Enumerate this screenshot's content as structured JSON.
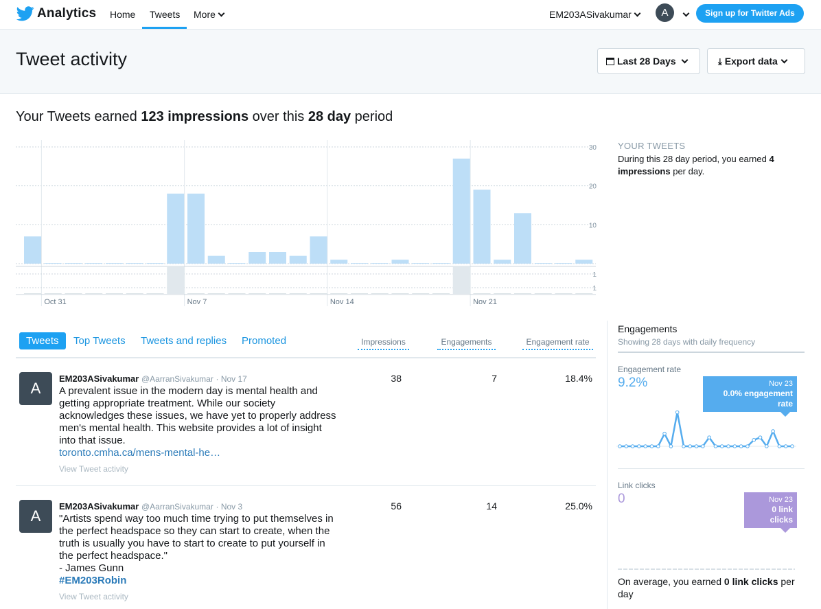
{
  "nav": {
    "brand": "Analytics",
    "home": "Home",
    "tweets": "Tweets",
    "more": "More",
    "username": "EM203ASivakumar",
    "avatar_letter": "A",
    "ads_button": "Sign up for Twitter Ads"
  },
  "header": {
    "title": "Tweet activity",
    "date_range": "Last 28 Days",
    "export": "Export data"
  },
  "summary": {
    "prefix": "Your Tweets earned",
    "impressions": "123 impressions",
    "middle": "over this",
    "period": "28 day",
    "suffix": "period"
  },
  "your_tweets": {
    "title": "YOUR TWEETS",
    "text_prefix": "During this 28 day period, you earned",
    "value": "4",
    "value_unit": "impressions",
    "text_suffix": "per day."
  },
  "chart_data": {
    "type": "bar",
    "days": 28,
    "x_tick_labels": [
      "Oct 31",
      "Nov 7",
      "Nov 14",
      "Nov 21"
    ],
    "y_tick_labels": [
      "30",
      "20",
      "10"
    ],
    "ylim": [
      0,
      30
    ],
    "values": [
      7,
      0,
      0,
      0,
      0,
      0,
      0,
      18,
      18,
      2,
      0,
      3,
      3,
      2,
      7,
      1,
      0,
      0,
      1,
      0,
      0,
      27,
      19,
      1,
      13,
      0,
      0,
      1
    ],
    "secondary_tick_labels": [
      "1",
      "1"
    ],
    "secondary_values": [
      0,
      0,
      0,
      0,
      0,
      0,
      0,
      1,
      0,
      0,
      0,
      0,
      0,
      0,
      0,
      0,
      0,
      0,
      0,
      0,
      0,
      1,
      0,
      0,
      0,
      0,
      0,
      0
    ],
    "bar_color": "#bddef7",
    "secondary_bar_color": "#e1e8ed"
  },
  "tabs": {
    "items": [
      "Tweets",
      "Top Tweets",
      "Tweets and replies",
      "Promoted"
    ],
    "columns": [
      "Impressions",
      "Engagements",
      "Engagement rate"
    ]
  },
  "tweets": [
    {
      "avatar": "A",
      "name": "EM203ASivakumar",
      "handle": "@AarranSivakumar",
      "date": "· Nov 17",
      "text": "A prevalent issue in the modern day is mental health and getting appropriate treatment. While our society acknowledges these issues, we have yet to properly address men's mental health. This website provides a lot of insight into that issue.",
      "link": "toronto.cmha.ca/mens-mental-he…",
      "activity": "View Tweet activity",
      "impressions": "38",
      "engagements": "7",
      "rate": "18.4%"
    },
    {
      "avatar": "A",
      "name": "EM203ASivakumar",
      "handle": "@AarranSivakumar",
      "date": "· Nov 3",
      "text": "\"Artists spend way too much time trying to put themselves in the perfect headspace so they can start to create, when the truth is usually you have to start to create to put yourself in the perfect headspace.\"",
      "attribution": "- James Gunn",
      "hashtag": "#EM203Robin",
      "activity": "View Tweet activity",
      "impressions": "56",
      "engagements": "14",
      "rate": "25.0%"
    }
  ],
  "engagements": {
    "title": "Engagements",
    "subtitle": "Showing 28 days with daily frequency",
    "rate_label": "Engagement rate",
    "rate_value": "9.2%",
    "rate_tooltip_date": "Nov 23",
    "rate_tooltip_text": "0.0% engagement rate",
    "rate_color": "#55acee",
    "rate_series": [
      0,
      0,
      0,
      0,
      0,
      0,
      0,
      10,
      0,
      27,
      0,
      0,
      0,
      0,
      7,
      0,
      0,
      0,
      0,
      0,
      0,
      5,
      7,
      0,
      12,
      0,
      0,
      0
    ],
    "clicks_label": "Link clicks",
    "clicks_value": "0",
    "clicks_tooltip_date": "Nov 23",
    "clicks_tooltip_text": "0 link clicks",
    "clicks_color": "#ab98db",
    "avg_prefix": "On average, you earned",
    "avg_value": "0 link clicks",
    "avg_suffix": "per day"
  }
}
